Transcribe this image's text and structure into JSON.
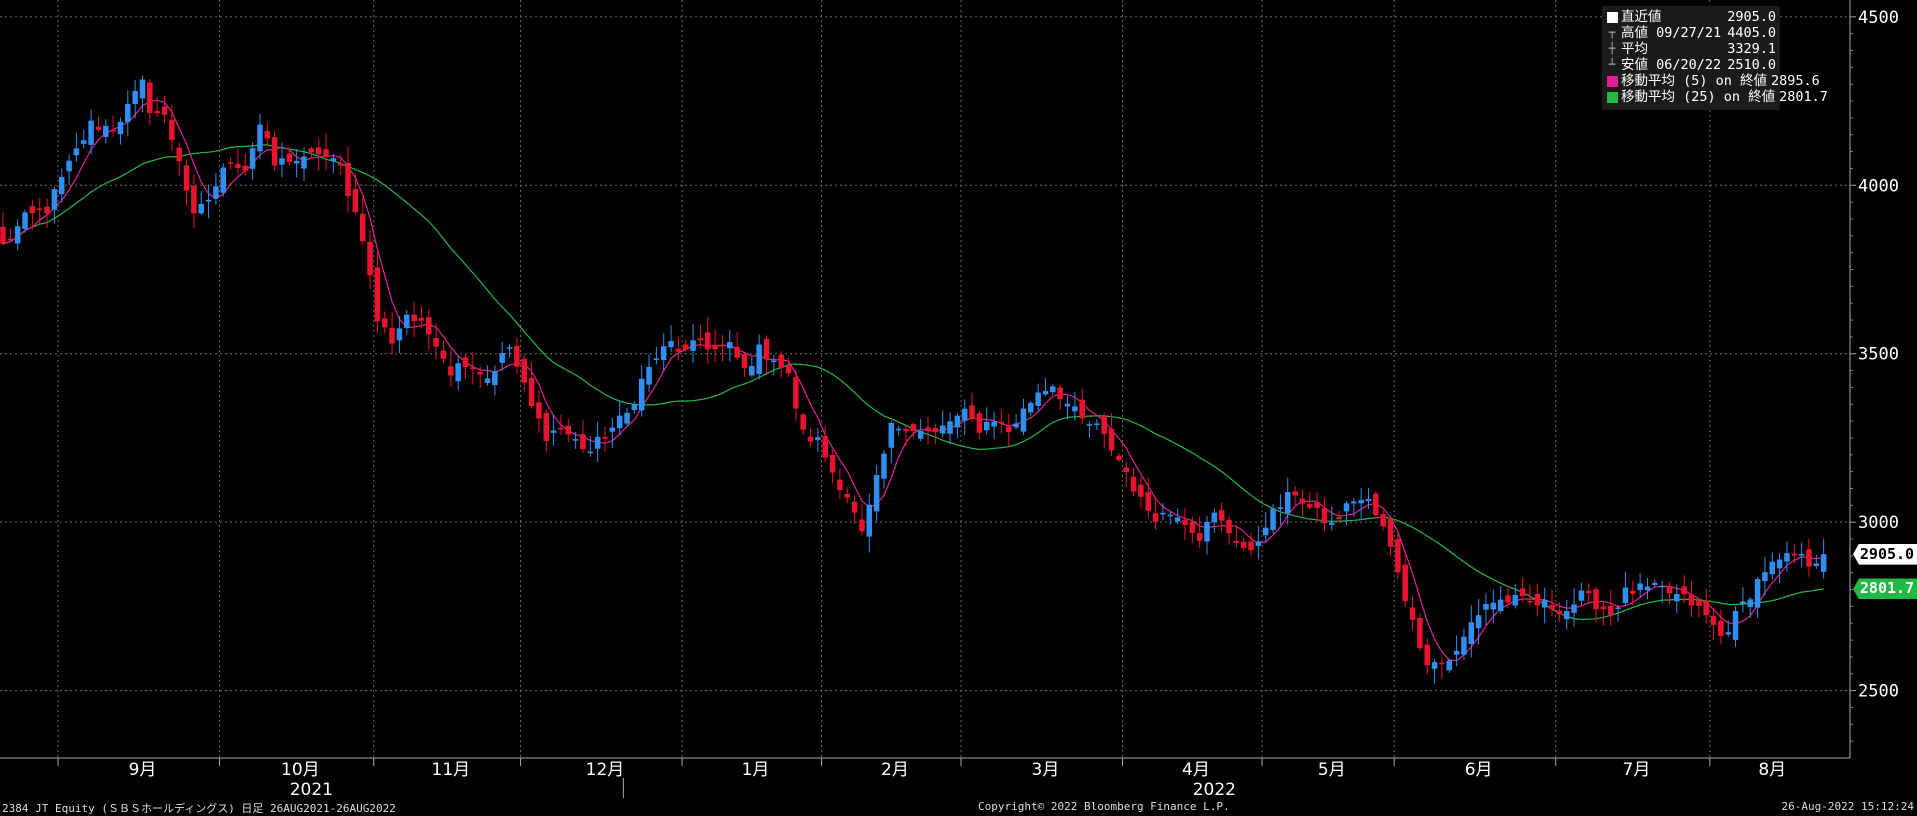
{
  "footer": {
    "left": "2384 JT Equity (ＳＢＳホールディングス) 日足 26AUG2021-26AUG2022",
    "center": "Copyright© 2022 Bloomberg Finance L.P.",
    "right": "26-Aug-2022 15:12:24"
  },
  "legend": [
    {
      "icon": "white-square-icon",
      "color": "#ffffff",
      "label": "直近値",
      "value": "2905.0"
    },
    {
      "icon": "high-marker-icon",
      "color": "#bbbbbb",
      "label": "高値 09/27/21",
      "value": "4405.0"
    },
    {
      "icon": "average-marker-icon",
      "color": "#bbbbbb",
      "label": "平均",
      "value": "3329.1"
    },
    {
      "icon": "low-marker-icon",
      "color": "#bbbbbb",
      "label": "安値 06/20/22",
      "value": "2510.0"
    },
    {
      "icon": "magenta-square-icon",
      "color": "#e0209a",
      "label": "移動平均 (5) on 終値",
      "value": "2895.6"
    },
    {
      "icon": "green-square-icon",
      "color": "#22b845",
      "label": "移動平均 (25) on 終値",
      "value": "2801.7"
    }
  ],
  "price_tags": [
    {
      "name": "last-price-tag",
      "text": "2905.0",
      "value": 2905,
      "bg": "#ffffff",
      "fg": "#000000"
    },
    {
      "name": "ma25-price-tag",
      "text": "2801.7",
      "value": 2801.7,
      "bg": "#22b845",
      "fg": "#ffffff"
    }
  ],
  "chart_data": {
    "type": "candlestick",
    "ylim": [
      2300,
      4550
    ],
    "yticks": [
      2500,
      3000,
      3500,
      4000,
      4500
    ],
    "grid": true,
    "colors": {
      "up": "#2f8ef0",
      "down": "#e8132e",
      "ma5": "#e0209a",
      "ma25": "#22b845",
      "grid": "#6a6a6a"
    },
    "months": [
      {
        "label": "9月",
        "start": 8
      },
      {
        "label": "10月",
        "start": 30
      },
      {
        "label": "11月",
        "start": 51
      },
      {
        "label": "12月",
        "start": 71
      },
      {
        "label": "1月",
        "start": 93
      },
      {
        "label": "2月",
        "start": 112
      },
      {
        "label": "3月",
        "start": 131
      },
      {
        "label": "4月",
        "start": 153
      },
      {
        "label": "5月",
        "start": 172
      },
      {
        "label": "6月",
        "start": 190
      },
      {
        "label": "7月",
        "start": 212
      },
      {
        "label": "8月",
        "start": 233
      }
    ],
    "years": [
      {
        "label": "2021",
        "index": 42
      },
      {
        "label": "2022",
        "index": 165
      }
    ],
    "year_boundary": 85,
    "close_anchors": [
      [
        0,
        3820
      ],
      [
        3,
        3900
      ],
      [
        6,
        3930
      ],
      [
        9,
        4060
      ],
      [
        12,
        4180
      ],
      [
        15,
        4170
      ],
      [
        17,
        4230
      ],
      [
        19,
        4300
      ],
      [
        20,
        4230
      ],
      [
        22,
        4200
      ],
      [
        24,
        4080
      ],
      [
        26,
        3900
      ],
      [
        28,
        3960
      ],
      [
        31,
        4080
      ],
      [
        33,
        4050
      ],
      [
        35,
        4180
      ],
      [
        37,
        4060
      ],
      [
        39,
        4080
      ],
      [
        41,
        4070
      ],
      [
        43,
        4100
      ],
      [
        46,
        4050
      ],
      [
        49,
        3850
      ],
      [
        51,
        3600
      ],
      [
        53,
        3540
      ],
      [
        55,
        3620
      ],
      [
        57,
        3580
      ],
      [
        59,
        3540
      ],
      [
        61,
        3450
      ],
      [
        63,
        3480
      ],
      [
        66,
        3430
      ],
      [
        69,
        3520
      ],
      [
        72,
        3340
      ],
      [
        74,
        3260
      ],
      [
        76,
        3280
      ],
      [
        78,
        3240
      ],
      [
        80,
        3210
      ],
      [
        82,
        3260
      ],
      [
        85,
        3320
      ],
      [
        87,
        3420
      ],
      [
        89,
        3490
      ],
      [
        91,
        3530
      ],
      [
        93,
        3500
      ],
      [
        95,
        3540
      ],
      [
        97,
        3510
      ],
      [
        99,
        3520
      ],
      [
        101,
        3450
      ],
      [
        103,
        3510
      ],
      [
        105,
        3490
      ],
      [
        107,
        3430
      ],
      [
        109,
        3260
      ],
      [
        111,
        3240
      ],
      [
        113,
        3150
      ],
      [
        115,
        3080
      ],
      [
        117,
        2960
      ],
      [
        119,
        3120
      ],
      [
        121,
        3280
      ],
      [
        123,
        3290
      ],
      [
        125,
        3270
      ],
      [
        127,
        3260
      ],
      [
        129,
        3300
      ],
      [
        131,
        3320
      ],
      [
        133,
        3280
      ],
      [
        135,
        3310
      ],
      [
        137,
        3270
      ],
      [
        139,
        3330
      ],
      [
        141,
        3390
      ],
      [
        143,
        3410
      ],
      [
        145,
        3350
      ],
      [
        147,
        3300
      ],
      [
        149,
        3280
      ],
      [
        151,
        3220
      ],
      [
        153,
        3150
      ],
      [
        155,
        3060
      ],
      [
        157,
        3020
      ],
      [
        160,
        3030
      ],
      [
        163,
        2960
      ],
      [
        165,
        3020
      ],
      [
        168,
        2950
      ],
      [
        170,
        2900
      ],
      [
        172,
        3000
      ],
      [
        174,
        3050
      ],
      [
        176,
        3090
      ],
      [
        178,
        3040
      ],
      [
        181,
        2990
      ],
      [
        184,
        3070
      ],
      [
        186,
        3060
      ],
      [
        188,
        2980
      ],
      [
        190,
        2860
      ],
      [
        192,
        2700
      ],
      [
        194,
        2590
      ],
      [
        196,
        2580
      ],
      [
        198,
        2610
      ],
      [
        200,
        2700
      ],
      [
        202,
        2760
      ],
      [
        205,
        2770
      ],
      [
        208,
        2760
      ],
      [
        211,
        2750
      ],
      [
        213,
        2740
      ],
      [
        215,
        2780
      ],
      [
        217,
        2760
      ],
      [
        219,
        2730
      ],
      [
        221,
        2790
      ],
      [
        223,
        2800
      ],
      [
        226,
        2800
      ],
      [
        228,
        2780
      ],
      [
        230,
        2760
      ],
      [
        232,
        2720
      ],
      [
        234,
        2660
      ],
      [
        236,
        2720
      ],
      [
        238,
        2790
      ],
      [
        240,
        2860
      ],
      [
        242,
        2880
      ],
      [
        244,
        2900
      ],
      [
        246,
        2880
      ],
      [
        248,
        2905
      ]
    ],
    "n_days": 249,
    "ma5_last": 2895.6,
    "ma25_last": 2801.7,
    "last_close": 2905.0,
    "high": {
      "date": "09/27/21",
      "value": 4405.0
    },
    "average": 3329.1,
    "low": {
      "date": "06/20/22",
      "value": 2510.0
    }
  }
}
